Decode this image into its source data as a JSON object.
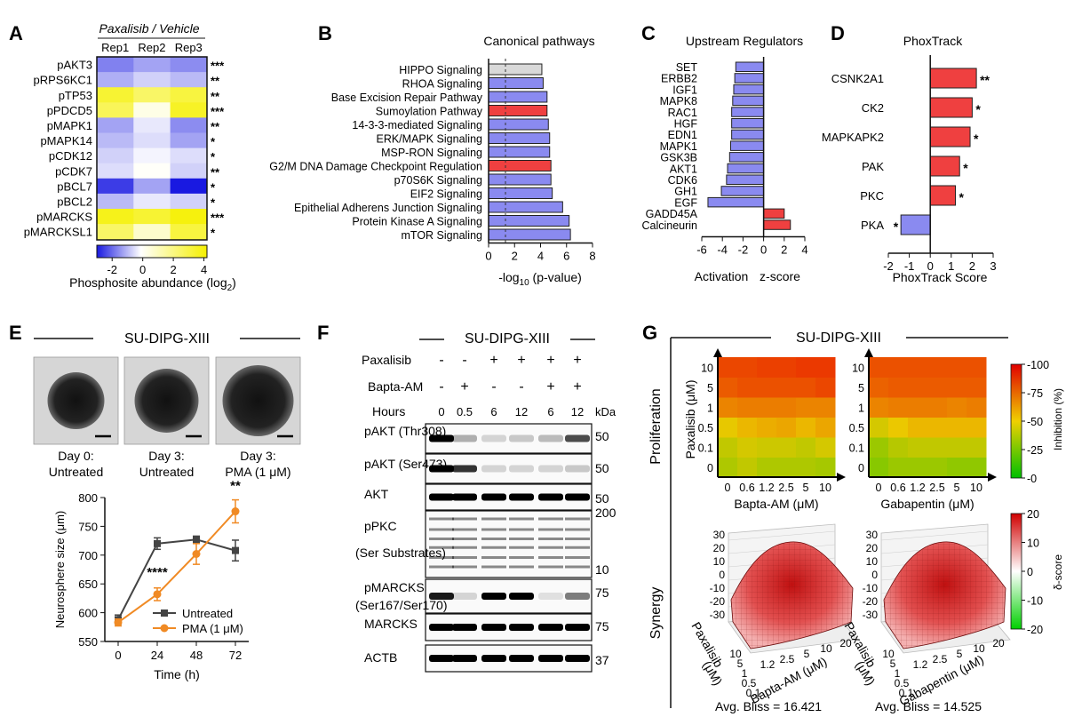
{
  "panels": {
    "a": "A",
    "b": "B",
    "c": "C",
    "d": "D",
    "e": "E",
    "f": "F",
    "g": "G"
  },
  "colors": {
    "blue": "#8a8af0",
    "red": "#ef4040",
    "gray": "#d9d9d9",
    "orange": "#f08a24",
    "dark": "#444444"
  },
  "heatmap": {
    "header": "Paxalisib / Vehicle",
    "columns": [
      "Rep1",
      "Rep2",
      "Rep3"
    ],
    "rows": [
      "pAKT3",
      "pRPS6KC1",
      "pTP53",
      "pPDCD5",
      "pMAPK1",
      "pMAPK14",
      "pCDK12",
      "pCDK7",
      "pBCL7",
      "pBCL2",
      "pMARCKS",
      "pMARCKSL1"
    ],
    "stars": [
      "***",
      "**",
      "**",
      "***",
      "**",
      "*",
      "*",
      "**",
      "*",
      "*",
      "***",
      "*"
    ],
    "values": [
      [
        -2.2,
        -1.6,
        -2.0
      ],
      [
        -1.4,
        -0.8,
        -1.2
      ],
      [
        3.2,
        2.4,
        3.0
      ],
      [
        2.6,
        0.4,
        3.4
      ],
      [
        -1.6,
        -0.4,
        -2.0
      ],
      [
        -1.2,
        -0.6,
        -1.6
      ],
      [
        -0.8,
        -0.2,
        -0.6
      ],
      [
        -0.6,
        0.1,
        -0.8
      ],
      [
        -3.4,
        -1.6,
        -4.0
      ],
      [
        -1.2,
        -0.4,
        -0.8
      ],
      [
        3.6,
        3.2,
        3.8
      ],
      [
        2.4,
        0.8,
        3.0
      ]
    ],
    "scale_ticks": [
      "-2",
      "0",
      "2",
      "4"
    ],
    "scale_label": "Phosphosite abundance (log",
    "scale_sub": "2",
    "scale_close": ")"
  },
  "chart_data": [
    {
      "type": "bar",
      "title": "Canonical pathways",
      "categories": [
        "HIPPO Signaling",
        "RHOA Signaling",
        "Base Excision Repair Pathway",
        "Sumoylation Pathway",
        "14-3-3-mediated Signaling",
        "ERK/MAPK Signaling",
        "MSP-RON Signaling",
        "G2/M DNA Damage Checkpoint Regulation",
        "p70S6K Signaling",
        "EIF2 Signaling",
        "Epithelial Adherens Junction Signaling",
        "Protein Kinase A Signaling",
        "mTOR Signaling"
      ],
      "values": [
        4.1,
        4.2,
        4.5,
        4.5,
        4.6,
        4.7,
        4.7,
        4.8,
        4.8,
        4.9,
        5.7,
        6.2,
        6.3
      ],
      "bar_colors": [
        "gray",
        "blue",
        "blue",
        "red",
        "blue",
        "blue",
        "blue",
        "red",
        "blue",
        "blue",
        "blue",
        "blue",
        "blue"
      ],
      "xlim": [
        0,
        8
      ],
      "xticks": [
        "0",
        "2",
        "4",
        "6",
        "8"
      ],
      "threshold": 1.3,
      "xlabel_pre": "-log",
      "xlabel_sub": "10",
      "xlabel_post": " (p-value)"
    },
    {
      "type": "bar",
      "title": "Upstream Regulators",
      "categories": [
        "SET",
        "ERBB2",
        "IGF1",
        "MAPK8",
        "RAC1",
        "HGF",
        "EDN1",
        "MAPK1",
        "GSK3B",
        "AKT1",
        "CDK6",
        "GH1",
        "EGF",
        "GADD45A",
        "Calcineurin"
      ],
      "values": [
        -2.7,
        -2.8,
        -2.9,
        -3.0,
        -3.1,
        -3.1,
        -3.1,
        -3.2,
        -3.3,
        -3.5,
        -3.6,
        -4.1,
        -5.4,
        2.0,
        2.6
      ],
      "xlim": [
        -6,
        4
      ],
      "xticks": [
        "-6",
        "-4",
        "-2",
        "0",
        "2",
        "4"
      ],
      "xlabel_left": "Activation",
      "xlabel_right": "z-score"
    },
    {
      "type": "bar",
      "title": "PhoxTrack",
      "categories": [
        "CSNK2A1",
        "CK2",
        "MAPKAPK2",
        "PAK",
        "PKC",
        "PKA"
      ],
      "values": [
        2.2,
        2.0,
        1.9,
        1.4,
        1.2,
        -1.4
      ],
      "stars": [
        "**",
        "*",
        "*",
        "*",
        "*",
        "*"
      ],
      "xlim": [
        -2,
        3
      ],
      "xticks": [
        "-2",
        "-1",
        "0",
        "1",
        "2",
        "3"
      ],
      "xlabel": "PhoxTrack Score"
    },
    {
      "type": "line",
      "x": [
        0,
        24,
        48,
        72
      ],
      "series": [
        {
          "name": "Untreated",
          "values": [
            588,
            720,
            727,
            708
          ],
          "err": [
            8,
            10,
            6,
            18
          ]
        },
        {
          "name": "PMA (1 μM)",
          "values": [
            583,
            632,
            702,
            776
          ],
          "err": [
            6,
            11,
            18,
            20
          ]
        }
      ],
      "ylim": [
        550,
        800
      ],
      "yticks": [
        "550",
        "600",
        "650",
        "700",
        "750",
        "800"
      ],
      "xticks": [
        "0",
        "24",
        "48",
        "72"
      ],
      "ylabel": "Neurosphere size (μm)",
      "xlabel": "Time (h)",
      "annotations": [
        "****",
        "**"
      ]
    },
    {
      "type": "heatmap",
      "title": "Proliferation",
      "panels": [
        {
          "xlabel": "Bapta-AM (μM)",
          "values": [
            [
              30,
              35,
              30,
              30,
              30,
              28
            ],
            [
              35,
              40,
              38,
              38,
              35,
              40
            ],
            [
              45,
              55,
              58,
              60,
              55,
              60
            ],
            [
              70,
              72,
              72,
              72,
              70,
              70
            ],
            [
              82,
              85,
              85,
              85,
              85,
              88
            ],
            [
              88,
              88,
              90,
              90,
              92,
              92
            ]
          ]
        },
        {
          "xlabel": "Gabapentin (μM)",
          "values": [
            [
              20,
              25,
              25,
              25,
              22,
              22
            ],
            [
              25,
              32,
              35,
              35,
              35,
              35
            ],
            [
              40,
              50,
              55,
              55,
              55,
              55
            ],
            [
              70,
              72,
              72,
              72,
              70,
              72
            ],
            [
              80,
              82,
              82,
              82,
              82,
              82
            ],
            [
              85,
              85,
              85,
              85,
              85,
              85
            ]
          ]
        }
      ],
      "xticks": [
        "0",
        "0.6",
        "1.2",
        "2.5",
        "5",
        "10"
      ],
      "yticks": [
        "0",
        "0.1",
        "0.5",
        "1",
        "5",
        "10"
      ],
      "ylabel": "Paxalisib (μM)",
      "colorbar_label": "Inhibition (%)",
      "colorbar_ticks": [
        "-100",
        "-75",
        "-50",
        "-25",
        "-0"
      ]
    }
  ],
  "panel_e": {
    "title": "SU-DIPG-XIII",
    "images": [
      {
        "line1": "Day 0:",
        "line2": "Untreated"
      },
      {
        "line1": "Day 3:",
        "line2": "Untreated"
      },
      {
        "line1": "Day 3:",
        "line2": "PMA (1 μM)"
      }
    ]
  },
  "panel_f": {
    "title": "SU-DIPG-XIII",
    "row_labels": [
      "Paxalisib",
      "Bapta-AM",
      "Hours"
    ],
    "paxalisib": [
      "-",
      "-",
      "+",
      "+",
      "+",
      "+"
    ],
    "bapta": [
      "-",
      "+",
      "-",
      "-",
      "+",
      "+"
    ],
    "hours": [
      "0",
      "0.5",
      "6",
      "12",
      "6",
      "12"
    ],
    "kda": "kDa",
    "blots": [
      {
        "label": "pAKT (Thr308)",
        "line2": "",
        "marker": "50"
      },
      {
        "label": "pAKT (Ser473)",
        "line2": "",
        "marker": "50"
      },
      {
        "label": "AKT",
        "line2": "",
        "marker": "50"
      },
      {
        "label": "pPKC",
        "line2": "(Ser Substrates)",
        "marker": "200",
        "marker2": "10"
      },
      {
        "label": "pMARCKS",
        "line2": "(Ser167/Ser170)",
        "marker": "75"
      },
      {
        "label": "MARCKS",
        "line2": "",
        "marker": "75"
      },
      {
        "label": "ACTB",
        "line2": "",
        "marker": "37"
      }
    ]
  },
  "panel_g": {
    "title": "SU-DIPG-XIII",
    "row1": "Proliferation",
    "row2": "Synergy",
    "synergy_label": "δ-score",
    "synergy_ticks": [
      "20",
      "10",
      "0",
      "-10",
      "-20"
    ],
    "z_ticks": [
      "30",
      "20",
      "10",
      "0",
      "-10",
      "-20",
      "-30"
    ],
    "depth_ticks": [
      "10",
      "5",
      "1",
      "0.5",
      "0.1"
    ],
    "width_ticks": [
      "1.2",
      "2.5",
      "5",
      "10",
      "20"
    ],
    "axis_pax": "Paxalisib",
    "axis_um": "(μM)",
    "axis_bapta": "Bapta-AM (μM)",
    "axis_gaba": "Gabapentin (μM)",
    "bliss": [
      "Avg. Bliss = 16.421",
      "Avg. Bliss = 14.525"
    ]
  }
}
